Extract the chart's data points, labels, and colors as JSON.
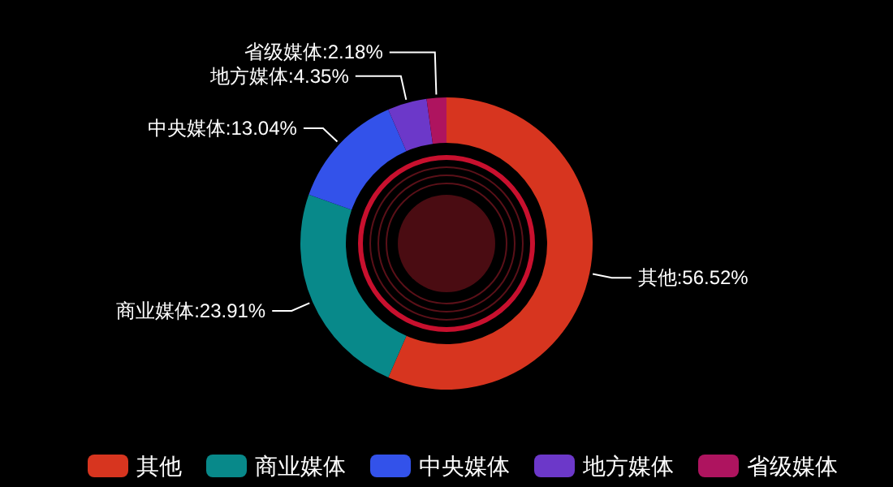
{
  "chart_data": {
    "type": "donut",
    "categories": [
      "其他",
      "商业媒体",
      "中央媒体",
      "地方媒体",
      "省级媒体"
    ],
    "values": [
      56.52,
      23.91,
      13.04,
      4.35,
      2.18
    ],
    "colors": [
      "#d7351f",
      "#08898a",
      "#3352ea",
      "#6c38c9",
      "#ae145f"
    ],
    "value_labels": [
      "其他:56.52%",
      "商业媒体:23.91%",
      "中央媒体:13.04%",
      "地方媒体:4.35%",
      "省级媒体:2.18%"
    ],
    "legend": "bottom"
  }
}
